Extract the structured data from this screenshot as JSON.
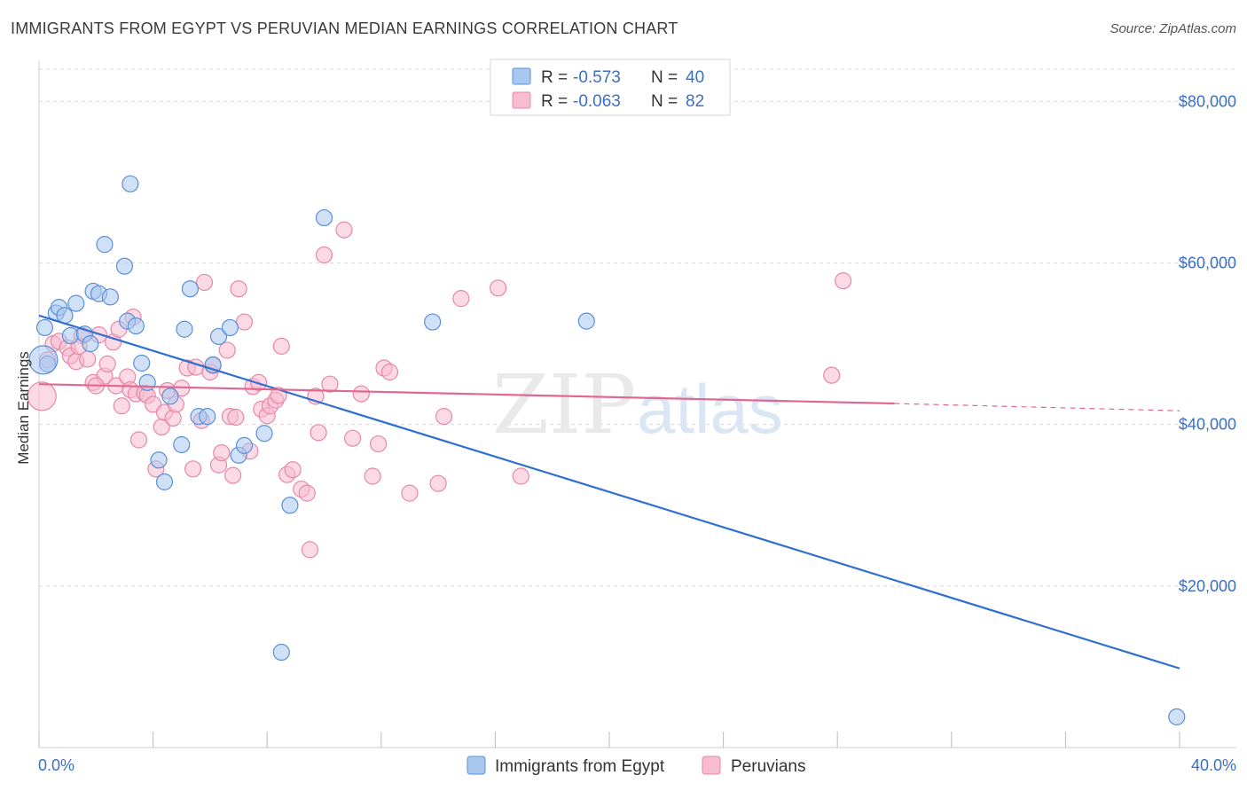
{
  "header": {
    "title": "IMMIGRANTS FROM EGYPT VS PERUVIAN MEDIAN EARNINGS CORRELATION CHART",
    "source": "Source: ZipAtlas.com"
  },
  "watermark": {
    "zip": "ZIP",
    "atlas": "atlas"
  },
  "stats_legend": {
    "r_label": "R =",
    "n_label": "N =",
    "egypt": {
      "r": "-0.573",
      "n": "40"
    },
    "peru": {
      "r": "-0.063",
      "n": "82"
    }
  },
  "colors": {
    "egypt_fill": "#a9c8f0",
    "egypt_stroke": "#5b8fd6",
    "egypt_line": "#2f6fd0",
    "peru_fill": "#f7bcd0",
    "peru_stroke": "#e588a8",
    "peru_line": "#e0678f",
    "tick_text": "#3a6fc4",
    "grid": "#d9d9d9"
  },
  "chart_data": {
    "type": "scatter",
    "title": "IMMIGRANTS FROM EGYPT VS PERUVIAN MEDIAN EARNINGS CORRELATION CHART",
    "xlabel": "",
    "ylabel": "Median Earnings",
    "xlim": [
      0,
      40
    ],
    "ylim": [
      0,
      84000
    ],
    "x_unit": "%",
    "x_tick_labels": [
      "0.0%",
      "40.0%"
    ],
    "y_ticks": [
      20000,
      40000,
      60000,
      80000
    ],
    "y_tick_labels": [
      "$20,000",
      "$40,000",
      "$60,000",
      "$80,000"
    ],
    "grid": true,
    "legend_position": "bottom-center",
    "series": [
      {
        "name": "Immigrants from Egypt",
        "color": "#a9c8f0",
        "points": [
          [
            0.2,
            52000
          ],
          [
            0.3,
            47500
          ],
          [
            0.6,
            53800
          ],
          [
            0.7,
            54500
          ],
          [
            0.9,
            53500
          ],
          [
            1.3,
            55000
          ],
          [
            1.1,
            51000
          ],
          [
            1.6,
            51200
          ],
          [
            1.8,
            50000
          ],
          [
            1.9,
            56500
          ],
          [
            2.1,
            56200
          ],
          [
            2.5,
            55800
          ],
          [
            2.3,
            62300
          ],
          [
            3.0,
            59600
          ],
          [
            3.2,
            69800
          ],
          [
            3.1,
            52800
          ],
          [
            3.4,
            52200
          ],
          [
            3.6,
            47600
          ],
          [
            3.8,
            45200
          ],
          [
            4.2,
            35600
          ],
          [
            4.4,
            32900
          ],
          [
            4.6,
            43500
          ],
          [
            5.0,
            37500
          ],
          [
            5.1,
            51800
          ],
          [
            5.3,
            56800
          ],
          [
            5.6,
            41000
          ],
          [
            5.9,
            41000
          ],
          [
            6.1,
            47400
          ],
          [
            6.3,
            50900
          ],
          [
            6.7,
            52000
          ],
          [
            7.0,
            36200
          ],
          [
            7.2,
            37400
          ],
          [
            7.9,
            38900
          ],
          [
            8.5,
            11800
          ],
          [
            8.8,
            30000
          ],
          [
            10.0,
            65600
          ],
          [
            13.8,
            52700
          ],
          [
            19.2,
            52800
          ],
          [
            39.9,
            3800
          ],
          [
            0.15,
            48000
          ]
        ],
        "trend": {
          "x": [
            0,
            40
          ],
          "y": [
            53500,
            9800
          ]
        }
      },
      {
        "name": "Peruvians",
        "color": "#f7bcd0",
        "points": [
          [
            0.1,
            43500
          ],
          [
            0.3,
            48000
          ],
          [
            0.5,
            50000
          ],
          [
            0.7,
            50300
          ],
          [
            1.0,
            49500
          ],
          [
            1.1,
            48500
          ],
          [
            1.3,
            47800
          ],
          [
            1.5,
            51000
          ],
          [
            1.7,
            48100
          ],
          [
            1.9,
            45200
          ],
          [
            2.1,
            51100
          ],
          [
            2.3,
            46000
          ],
          [
            2.4,
            47500
          ],
          [
            2.6,
            50200
          ],
          [
            2.7,
            44800
          ],
          [
            2.8,
            51800
          ],
          [
            2.9,
            42300
          ],
          [
            3.1,
            45900
          ],
          [
            3.2,
            44300
          ],
          [
            3.3,
            53300
          ],
          [
            3.4,
            43800
          ],
          [
            3.5,
            38100
          ],
          [
            3.7,
            43900
          ],
          [
            3.8,
            43600
          ],
          [
            4.0,
            42500
          ],
          [
            4.1,
            34500
          ],
          [
            4.3,
            39700
          ],
          [
            4.4,
            41500
          ],
          [
            4.5,
            44200
          ],
          [
            4.7,
            40800
          ],
          [
            4.8,
            42500
          ],
          [
            5.0,
            44500
          ],
          [
            5.2,
            47000
          ],
          [
            5.4,
            34500
          ],
          [
            5.5,
            47100
          ],
          [
            5.7,
            40500
          ],
          [
            5.8,
            57600
          ],
          [
            6.0,
            46500
          ],
          [
            6.1,
            47300
          ],
          [
            6.3,
            35000
          ],
          [
            6.4,
            36500
          ],
          [
            6.6,
            49200
          ],
          [
            6.7,
            41000
          ],
          [
            6.9,
            40900
          ],
          [
            7.0,
            56800
          ],
          [
            7.2,
            52700
          ],
          [
            7.4,
            36700
          ],
          [
            7.5,
            44700
          ],
          [
            7.7,
            45200
          ],
          [
            7.8,
            41900
          ],
          [
            8.0,
            41100
          ],
          [
            8.1,
            42300
          ],
          [
            8.3,
            43000
          ],
          [
            8.4,
            43600
          ],
          [
            8.5,
            49700
          ],
          [
            8.7,
            33800
          ],
          [
            8.9,
            34400
          ],
          [
            9.2,
            32000
          ],
          [
            9.4,
            31500
          ],
          [
            9.5,
            24500
          ],
          [
            9.7,
            43500
          ],
          [
            9.8,
            39000
          ],
          [
            10.0,
            61000
          ],
          [
            10.2,
            45000
          ],
          [
            10.7,
            64100
          ],
          [
            11.0,
            38300
          ],
          [
            11.3,
            43800
          ],
          [
            11.7,
            33600
          ],
          [
            11.9,
            37600
          ],
          [
            12.1,
            47000
          ],
          [
            12.3,
            46500
          ],
          [
            13.0,
            31500
          ],
          [
            14.0,
            32700
          ],
          [
            14.2,
            41000
          ],
          [
            14.8,
            55600
          ],
          [
            16.1,
            56900
          ],
          [
            16.9,
            33600
          ],
          [
            27.8,
            46100
          ],
          [
            28.2,
            57800
          ],
          [
            1.4,
            49700
          ],
          [
            2.0,
            44800
          ],
          [
            6.8,
            33700
          ]
        ],
        "trend": {
          "x": [
            0,
            30
          ],
          "y": [
            45000,
            42600
          ]
        },
        "trend_dashed": {
          "x": [
            30,
            40
          ],
          "y": [
            42600,
            41700
          ]
        }
      }
    ]
  }
}
